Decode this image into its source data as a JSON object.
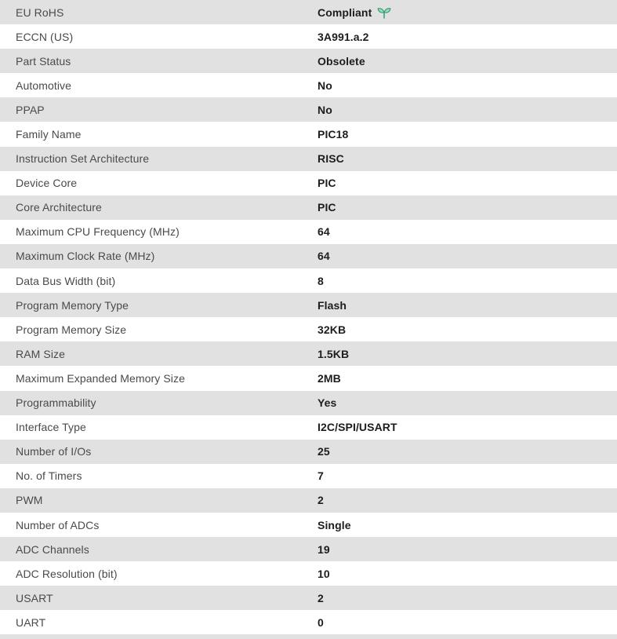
{
  "table": {
    "rows": [
      {
        "label": "EU RoHS",
        "value": "Compliant",
        "icon": "leaf-icon"
      },
      {
        "label": "ECCN (US)",
        "value": "3A991.a.2"
      },
      {
        "label": "Part Status",
        "value": "Obsolete"
      },
      {
        "label": "Automotive",
        "value": "No"
      },
      {
        "label": "PPAP",
        "value": "No"
      },
      {
        "label": "Family Name",
        "value": "PIC18"
      },
      {
        "label": "Instruction Set Architecture",
        "value": "RISC"
      },
      {
        "label": "Device Core",
        "value": "PIC"
      },
      {
        "label": "Core Architecture",
        "value": "PIC"
      },
      {
        "label": "Maximum CPU Frequency (MHz)",
        "value": "64"
      },
      {
        "label": "Maximum Clock Rate (MHz)",
        "value": "64"
      },
      {
        "label": "Data Bus Width (bit)",
        "value": "8"
      },
      {
        "label": "Program Memory Type",
        "value": "Flash"
      },
      {
        "label": "Program Memory Size",
        "value": "32KB"
      },
      {
        "label": "RAM Size",
        "value": "1.5KB"
      },
      {
        "label": "Maximum Expanded Memory Size",
        "value": "2MB"
      },
      {
        "label": "Programmability",
        "value": "Yes"
      },
      {
        "label": "Interface Type",
        "value": "I2C/SPI/USART"
      },
      {
        "label": "Number of I/Os",
        "value": "25"
      },
      {
        "label": "No. of Timers",
        "value": "7"
      },
      {
        "label": "PWM",
        "value": "2"
      },
      {
        "label": "Number of ADCs",
        "value": "Single"
      },
      {
        "label": "ADC Channels",
        "value": "19"
      },
      {
        "label": "ADC Resolution (bit)",
        "value": "10"
      },
      {
        "label": "USART",
        "value": "2"
      },
      {
        "label": "UART",
        "value": "0"
      }
    ]
  },
  "colors": {
    "row_alt_bg": "#e1e1e1",
    "row_bg": "#ffffff",
    "label_text": "#4a4a4a",
    "value_text": "#1d1d1d",
    "leaf_green": "#2e9b6e",
    "leaf_fill": "#9ed9bb"
  }
}
